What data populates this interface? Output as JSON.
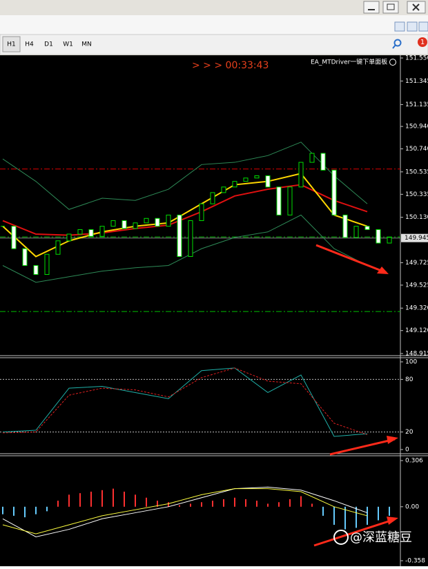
{
  "toolbar": {
    "timeframes": [
      "H1",
      "H4",
      "D1",
      "W1",
      "MN"
    ],
    "notification_count": 1
  },
  "countdown": "> > > 00:33:43",
  "ea_label": "EA_MTDriver一键下单面板",
  "watermark": "@深蓝糖豆",
  "chart_data": [
    {
      "type": "candlestick",
      "closes": [
        150.05,
        149.85,
        149.7,
        149.62,
        149.8,
        149.92,
        149.98,
        150.02,
        149.96,
        150.05,
        150.1,
        150.03,
        150.08,
        150.12,
        150.05,
        150.15,
        149.78,
        150.1,
        150.25,
        150.35,
        150.4,
        150.45,
        150.48,
        150.5,
        150.4,
        150.15,
        150.4,
        150.62,
        150.7,
        150.55,
        150.15,
        149.95,
        150.05,
        150.02,
        149.9,
        149.95
      ],
      "up_color": "#000000",
      "down_color": "#ffffff",
      "wick_color": "#00e000",
      "ylim": [
        148.915,
        151.55
      ],
      "yticks": [
        {
          "value": 151.55,
          "label": "151.550"
        },
        {
          "value": 151.345,
          "label": "151.345"
        },
        {
          "value": 151.135,
          "label": "151.135"
        },
        {
          "value": 150.94,
          "label": "150.940"
        },
        {
          "value": 150.74,
          "label": "150.740"
        },
        {
          "value": 150.535,
          "label": "150.535"
        },
        {
          "value": 150.335,
          "label": "150.335"
        },
        {
          "value": 150.13,
          "label": "150.130"
        },
        {
          "value": 149.725,
          "label": "149.725"
        },
        {
          "value": 149.525,
          "label": "149.525"
        },
        {
          "value": 149.32,
          "label": "149.320"
        },
        {
          "value": 149.12,
          "label": "149.120"
        },
        {
          "value": 148.915,
          "label": "148.915"
        }
      ],
      "current_price": {
        "value": 149.945,
        "label": "149.945"
      },
      "hlines": [
        {
          "value": 150.56,
          "color": "#e00000"
        },
        {
          "value": 149.955,
          "color": "#00c000"
        },
        {
          "value": 149.29,
          "color": "#00c000"
        }
      ],
      "x": [
        0,
        3,
        6,
        9,
        12,
        15,
        18,
        21,
        24,
        27,
        30,
        33
      ],
      "lines": [
        {
          "color": "#2e8b57",
          "width": 1,
          "values": [
            150.65,
            150.45,
            150.2,
            150.3,
            150.28,
            150.38,
            150.6,
            150.62,
            150.68,
            150.8,
            150.5,
            150.25
          ]
        },
        {
          "color": "#2e8b57",
          "width": 1,
          "values": [
            149.7,
            149.55,
            149.6,
            149.65,
            149.68,
            149.7,
            149.85,
            149.95,
            150.0,
            150.15,
            149.85,
            149.7
          ]
        },
        {
          "color": "#e01010",
          "width": 2,
          "values": [
            150.1,
            149.98,
            149.97,
            149.99,
            150.03,
            150.06,
            150.18,
            150.32,
            150.38,
            150.42,
            150.28,
            150.18
          ]
        },
        {
          "color": "#ffd700",
          "width": 2,
          "values": [
            150.05,
            149.78,
            149.92,
            150.0,
            150.05,
            150.08,
            150.25,
            150.42,
            150.45,
            150.52,
            150.15,
            150.05
          ]
        }
      ]
    },
    {
      "type": "stochastic",
      "ylim": [
        0,
        100
      ],
      "yticks": [
        100,
        80,
        20,
        0
      ],
      "levels": [
        80,
        20
      ],
      "x": [
        0,
        3,
        6,
        9,
        12,
        15,
        18,
        21,
        24,
        27,
        30,
        33
      ],
      "lines": [
        {
          "color": "#20b2aa",
          "dash": false,
          "values": [
            20,
            22,
            70,
            72,
            65,
            58,
            90,
            93,
            65,
            85,
            15,
            18
          ]
        },
        {
          "color": "#e02020",
          "dash": true,
          "values": [
            19,
            20,
            62,
            70,
            68,
            60,
            82,
            93,
            78,
            75,
            30,
            17
          ]
        }
      ]
    },
    {
      "type": "macd",
      "ylim": [
        -0.358,
        0.306
      ],
      "yticks": [
        0.306,
        {
          "value": 0,
          "label": "0.00"
        },
        -0.358
      ],
      "histogram": [
        -0.05,
        -0.06,
        -0.07,
        -0.05,
        -0.03,
        0.04,
        0.08,
        0.09,
        0.1,
        0.11,
        0.12,
        0.1,
        0.08,
        0.06,
        0.04,
        0.03,
        0.01,
        0.02,
        0.03,
        0.04,
        0.05,
        0.06,
        0.05,
        0.04,
        0.02,
        0.03,
        0.05,
        0.07,
        0.02,
        -0.06,
        -0.12,
        -0.15,
        -0.14,
        -0.12,
        -0.09,
        -0.06
      ],
      "up_color": "#ff3030",
      "down_color": "#66ccff",
      "x": [
        0,
        3,
        6,
        9,
        12,
        15,
        18,
        21,
        24,
        27,
        30,
        33
      ],
      "lines": [
        {
          "color": "#ffffff",
          "values": [
            -0.08,
            -0.2,
            -0.15,
            -0.08,
            -0.04,
            0.0,
            0.06,
            0.12,
            0.13,
            0.11,
            0.04,
            -0.04
          ]
        },
        {
          "color": "#ffff40",
          "values": [
            -0.12,
            -0.18,
            -0.12,
            -0.06,
            -0.02,
            0.02,
            0.08,
            0.12,
            0.12,
            0.1,
            0.0,
            -0.06
          ]
        }
      ]
    }
  ]
}
